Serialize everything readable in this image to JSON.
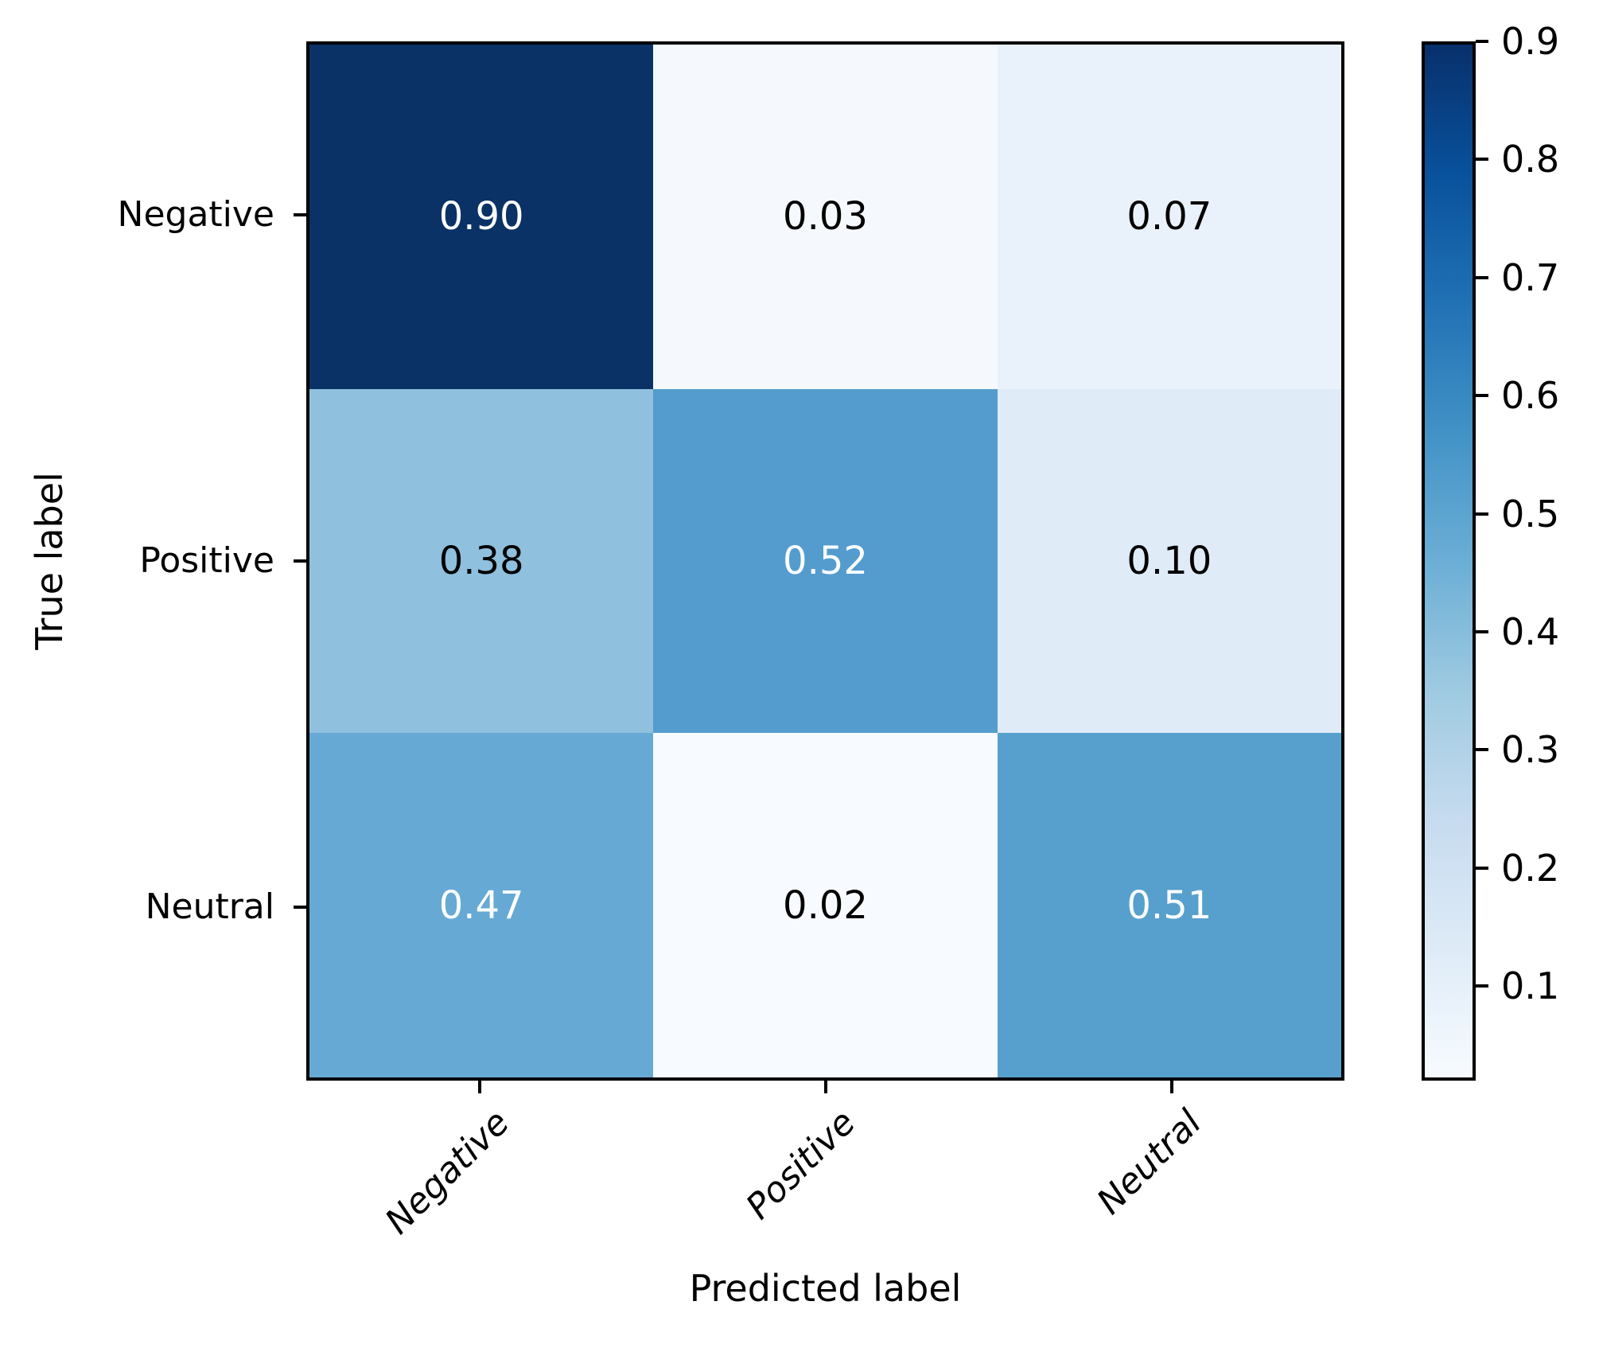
{
  "chart_data": {
    "type": "heatmap",
    "subtype": "confusion-matrix",
    "xlabel": "Predicted label",
    "ylabel": "True label",
    "x_categories": [
      "Negative",
      "Positive",
      "Neutral"
    ],
    "y_categories": [
      "Negative",
      "Positive",
      "Neutral"
    ],
    "matrix": [
      [
        0.9,
        0.03,
        0.07
      ],
      [
        0.38,
        0.52,
        0.1
      ],
      [
        0.47,
        0.02,
        0.51
      ]
    ],
    "cell_labels": [
      [
        "0.90",
        "0.03",
        "0.07"
      ],
      [
        "0.38",
        "0.52",
        "0.10"
      ],
      [
        "0.47",
        "0.02",
        "0.51"
      ]
    ],
    "colormap": "Blues",
    "vmin": 0.02,
    "vmax": 0.9,
    "grid": false,
    "legend_position": "colorbar-right",
    "colorbar_ticks": [
      0.9,
      0.8,
      0.7,
      0.6,
      0.5,
      0.4,
      0.3,
      0.2,
      0.1
    ],
    "colorbar_tick_labels": [
      "0.9",
      "0.8",
      "0.7",
      "0.6",
      "0.5",
      "0.4",
      "0.3",
      "0.2",
      "0.1"
    ]
  },
  "colors": {
    "background": "#ffffff",
    "axis": "#000000",
    "text": "#000000",
    "cell_text_light": "#ffffff",
    "cell_text_dark": "#000000",
    "cell_colors": [
      [
        "#0a3266",
        "#f5f9fe",
        "#e9f1fa"
      ],
      [
        "#8fc0de",
        "#549ccd",
        "#dfebf7"
      ],
      [
        "#66a9d4",
        "#f7fbff",
        "#57a0ce"
      ]
    ],
    "cell_text_colors": [
      [
        "#ffffff",
        "#000000",
        "#000000"
      ],
      [
        "#000000",
        "#ffffff",
        "#000000"
      ],
      [
        "#ffffff",
        "#000000",
        "#ffffff"
      ]
    ],
    "colorbar_stops_top_to_bottom": [
      "#08306b",
      "#08519c",
      "#2171b5",
      "#4292c6",
      "#6baed6",
      "#9ecae1",
      "#c6dbef",
      "#deebf7",
      "#f7fbff"
    ]
  }
}
